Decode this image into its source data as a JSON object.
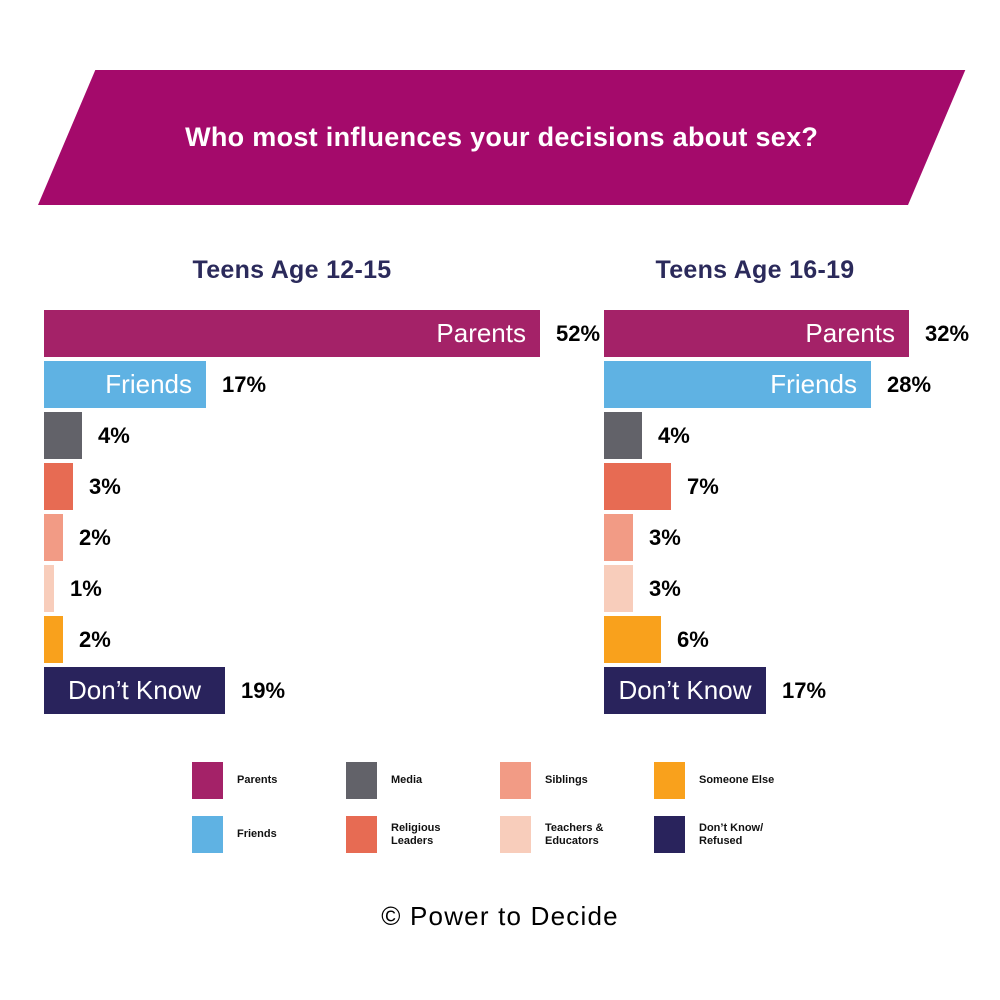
{
  "banner": {
    "title": "Who most influences your decisions about sex?",
    "background_color": "#A40A6B"
  },
  "footer": {
    "credit": "© Power to Decide"
  },
  "chart_data": {
    "type": "bar",
    "orientation": "horizontal",
    "value_unit": "%",
    "title": "Who most influences your decisions about sex?",
    "categories": [
      "Parents",
      "Friends",
      "Media",
      "Religious Leaders",
      "Siblings",
      "Teachers & Educators",
      "Someone Else",
      "Don’t Know/Refused"
    ],
    "colors": [
      "#A42268",
      "#5FB2E3",
      "#626269",
      "#E76B53",
      "#F29B85",
      "#F8CDBB",
      "#F9A11C",
      "#29235C"
    ],
    "series": [
      {
        "name": "Teens Age 12-15",
        "values": [
          52,
          17,
          4,
          3,
          2,
          1,
          2,
          19
        ]
      },
      {
        "name": "Teens Age 16-19",
        "values": [
          32,
          28,
          4,
          7,
          3,
          3,
          6,
          17
        ]
      }
    ],
    "bar_labels": [
      {
        "index": 0,
        "text": "Parents",
        "align": "right"
      },
      {
        "index": 1,
        "text": "Friends",
        "align": "right"
      },
      {
        "index": 7,
        "text": "Don’t Know",
        "align": "center"
      }
    ],
    "axis": {
      "x_max": 52,
      "gridlines": false,
      "legend_position": "bottom"
    }
  },
  "legend": {
    "rows": [
      [
        {
          "label_lines": [
            "Parents"
          ],
          "category_index": 0
        },
        {
          "label_lines": [
            "Media"
          ],
          "category_index": 2
        },
        {
          "label_lines": [
            "Siblings"
          ],
          "category_index": 4
        },
        {
          "label_lines": [
            "Someone Else"
          ],
          "category_index": 6
        }
      ],
      [
        {
          "label_lines": [
            "Friends"
          ],
          "category_index": 1
        },
        {
          "label_lines": [
            "Religious",
            "Leaders"
          ],
          "category_index": 3
        },
        {
          "label_lines": [
            "Teachers &",
            "Educators"
          ],
          "category_index": 5
        },
        {
          "label_lines": [
            "Don’t Know/",
            "Refused"
          ],
          "category_index": 7
        }
      ]
    ]
  }
}
